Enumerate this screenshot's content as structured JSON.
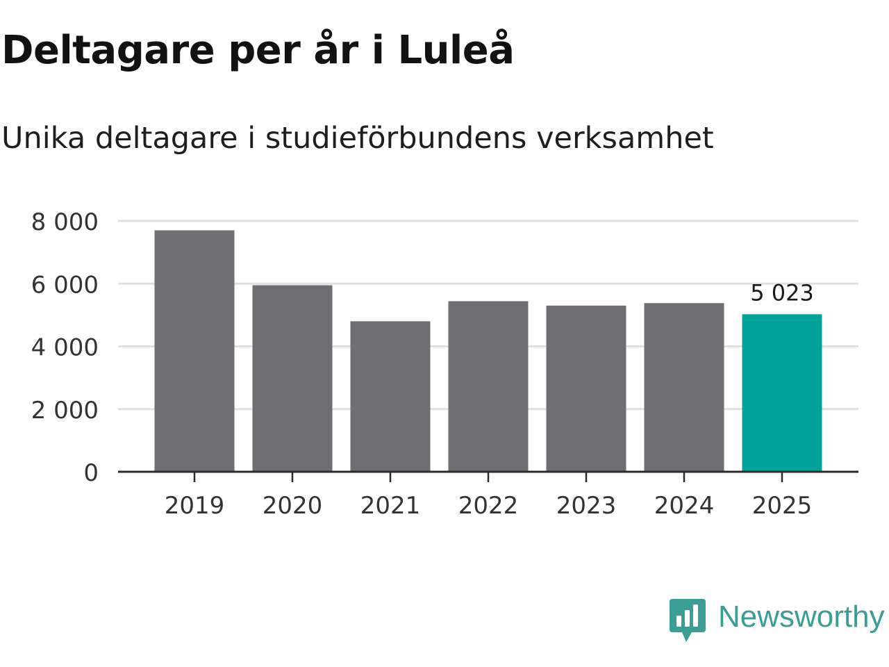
{
  "title": "Deltagare per år i Luleå",
  "subtitle": "Unika deltagare i studieförbundens verksamhet",
  "brand": {
    "name": "Newsworthy",
    "icon": "bar-chart-speech-bubble-icon",
    "color": "#3a9e97"
  },
  "colors": {
    "bar": "#6f6e74",
    "highlight": "#00a49a",
    "grid": "#e0e0e0",
    "axis": "#2a2a2a",
    "text": "#333333"
  },
  "chart_data": {
    "type": "bar",
    "title": "Deltagare per år i Luleå",
    "subtitle": "Unika deltagare i studieförbundens verksamhet",
    "xlabel": "",
    "ylabel": "",
    "categories": [
      "2019",
      "2020",
      "2021",
      "2022",
      "2023",
      "2024",
      "2025"
    ],
    "values": [
      7700,
      5950,
      4800,
      5440,
      5300,
      5380,
      5023
    ],
    "highlight_index": 6,
    "data_labels": [
      {
        "index": 6,
        "text": "5 023"
      }
    ],
    "ylim": [
      0,
      8000
    ],
    "yticks": [
      0,
      2000,
      4000,
      6000,
      8000
    ],
    "ytick_labels": [
      "0",
      "2 000",
      "4 000",
      "6 000",
      "8 000"
    ],
    "grid": true,
    "legend": "none"
  }
}
